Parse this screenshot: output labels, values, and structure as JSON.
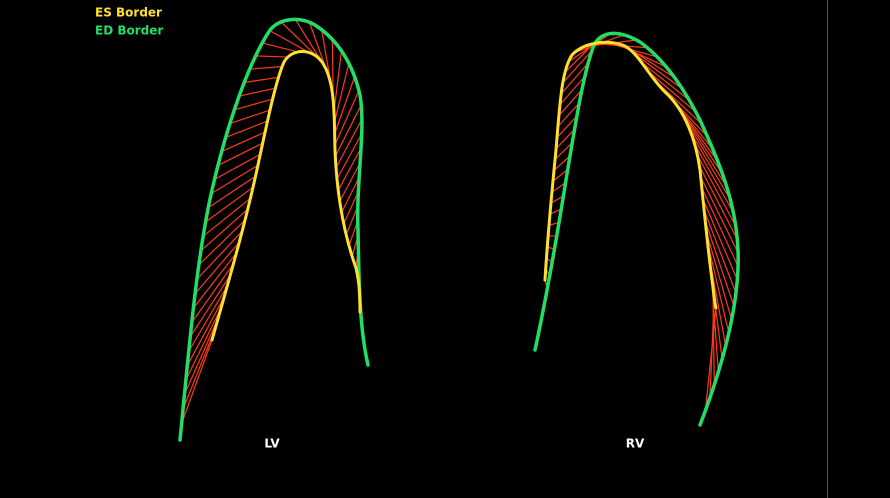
{
  "legend": {
    "es_border": "ES Border",
    "ed_border": "ED Border"
  },
  "views": {
    "lv": "LV",
    "rv": "RV"
  }
}
